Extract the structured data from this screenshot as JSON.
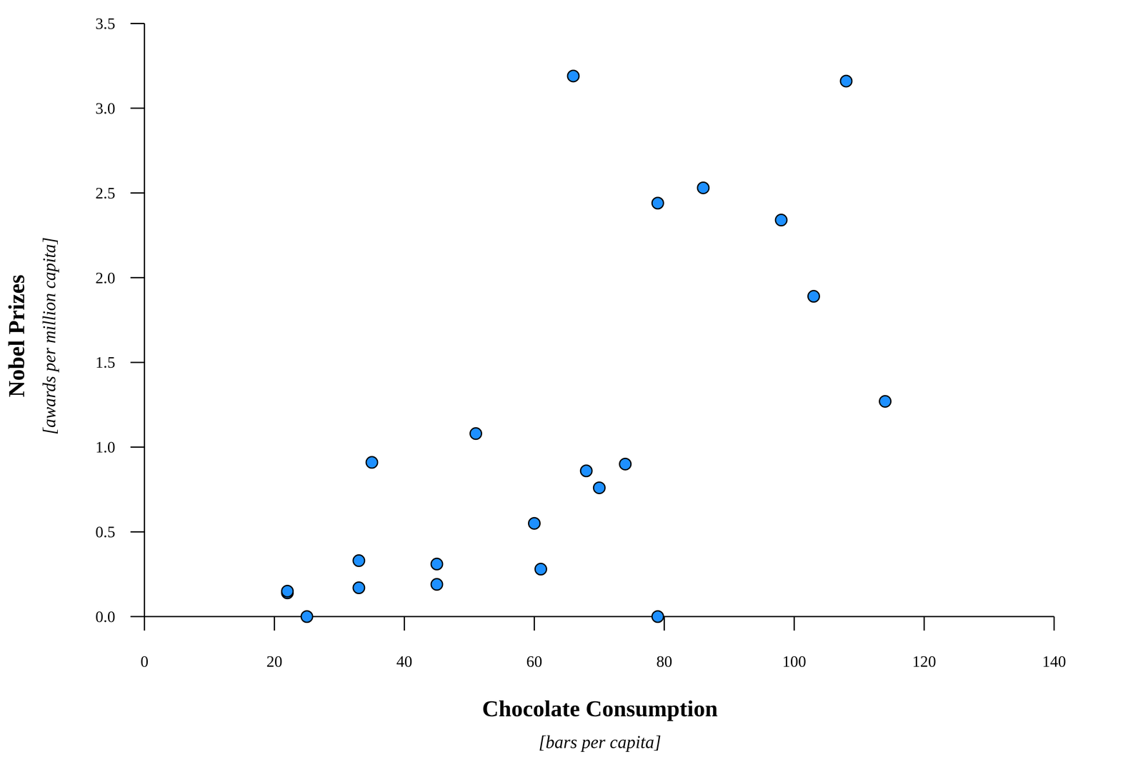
{
  "chart_data": {
    "type": "scatter",
    "x_label": "Chocolate Consumption",
    "x_units": "[bars per capita]",
    "y_label": "Nobel Prizes",
    "y_units": "[awards per million capita]",
    "x": [
      22,
      22,
      25,
      33,
      33,
      35,
      45,
      45,
      51,
      60,
      61,
      66,
      68,
      70,
      74,
      79,
      79,
      86,
      98,
      103,
      108,
      114
    ],
    "values": [
      0.14,
      0.15,
      0.0,
      0.33,
      0.17,
      0.91,
      0.31,
      0.19,
      1.08,
      0.55,
      0.28,
      3.19,
      0.86,
      0.76,
      0.9,
      2.44,
      0.0,
      2.53,
      2.34,
      1.89,
      3.16,
      1.27
    ],
    "color": "#1e90ff",
    "marker": "circle",
    "xlim": [
      0,
      140
    ],
    "xticks": [
      0,
      20,
      40,
      60,
      80,
      100,
      120,
      140
    ],
    "ylim": [
      0,
      3.5
    ],
    "yticks": [
      {
        "value": 0,
        "label": "0.0"
      },
      {
        "value": 0.5,
        "label": "0.5"
      },
      {
        "value": 1,
        "label": "1.0"
      },
      {
        "value": 1.5,
        "label": "1.5"
      },
      {
        "value": 2,
        "label": "2.0"
      },
      {
        "value": 2.5,
        "label": "2.5"
      },
      {
        "value": 3,
        "label": "3.0"
      },
      {
        "value": 3.5,
        "label": "3.5"
      }
    ],
    "grid": false
  }
}
